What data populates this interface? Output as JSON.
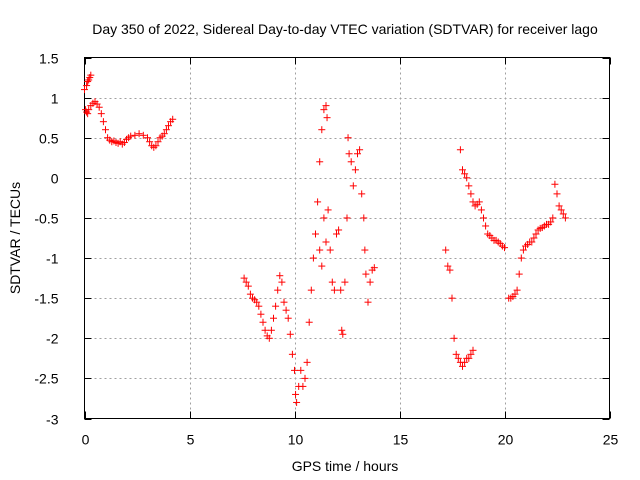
{
  "chart_data": {
    "type": "scatter",
    "title": "Day 350 of 2022, Sidereal Day-to-day VTEC variation (SDTVAR) for receiver lago",
    "xlabel": "GPS time / hours",
    "ylabel": "SDTVAR / TECUs",
    "xlim": [
      0,
      25
    ],
    "ylim": [
      -3,
      1.5
    ],
    "xticks": [
      0,
      5,
      10,
      15,
      20,
      25
    ],
    "yticks": [
      -3,
      -2.5,
      -2,
      -1.5,
      -1,
      -0.5,
      0,
      0.5,
      1,
      1.5
    ],
    "grid": true,
    "marker": "+",
    "series": [
      {
        "name": "SDTVAR",
        "color": "#ff0000",
        "points": [
          [
            0.0,
            1.1
          ],
          [
            0.1,
            1.15
          ],
          [
            0.15,
            1.2
          ],
          [
            0.2,
            1.22
          ],
          [
            0.25,
            1.25
          ],
          [
            0.3,
            1.28
          ],
          [
            0.05,
            0.85
          ],
          [
            0.1,
            0.82
          ],
          [
            0.15,
            0.8
          ],
          [
            0.2,
            0.85
          ],
          [
            0.3,
            0.9
          ],
          [
            0.4,
            0.93
          ],
          [
            0.5,
            0.95
          ],
          [
            0.6,
            0.92
          ],
          [
            0.7,
            0.88
          ],
          [
            0.8,
            0.8
          ],
          [
            0.9,
            0.7
          ],
          [
            1.0,
            0.6
          ],
          [
            1.1,
            0.5
          ],
          [
            1.2,
            0.47
          ],
          [
            1.3,
            0.45
          ],
          [
            1.4,
            0.46
          ],
          [
            1.5,
            0.44
          ],
          [
            1.6,
            0.43
          ],
          [
            1.7,
            0.45
          ],
          [
            1.8,
            0.42
          ],
          [
            1.9,
            0.44
          ],
          [
            2.0,
            0.48
          ],
          [
            2.1,
            0.5
          ],
          [
            2.2,
            0.52
          ],
          [
            2.4,
            0.53
          ],
          [
            2.6,
            0.55
          ],
          [
            2.8,
            0.53
          ],
          [
            3.0,
            0.5
          ],
          [
            3.1,
            0.45
          ],
          [
            3.2,
            0.4
          ],
          [
            3.3,
            0.38
          ],
          [
            3.4,
            0.4
          ],
          [
            3.5,
            0.45
          ],
          [
            3.6,
            0.5
          ],
          [
            3.7,
            0.52
          ],
          [
            3.8,
            0.55
          ],
          [
            3.9,
            0.6
          ],
          [
            4.0,
            0.65
          ],
          [
            4.1,
            0.7
          ],
          [
            4.2,
            0.73
          ],
          [
            7.6,
            -1.25
          ],
          [
            7.7,
            -1.3
          ],
          [
            7.8,
            -1.35
          ],
          [
            7.9,
            -1.45
          ],
          [
            8.0,
            -1.5
          ],
          [
            8.1,
            -1.52
          ],
          [
            8.2,
            -1.55
          ],
          [
            8.3,
            -1.6
          ],
          [
            8.4,
            -1.7
          ],
          [
            8.5,
            -1.8
          ],
          [
            8.6,
            -1.9
          ],
          [
            8.7,
            -1.97
          ],
          [
            8.8,
            -2.0
          ],
          [
            8.9,
            -1.9
          ],
          [
            9.0,
            -1.75
          ],
          [
            9.1,
            -1.6
          ],
          [
            9.2,
            -1.4
          ],
          [
            9.3,
            -1.22
          ],
          [
            9.4,
            -1.3
          ],
          [
            9.5,
            -1.55
          ],
          [
            9.6,
            -1.65
          ],
          [
            9.7,
            -1.75
          ],
          [
            9.8,
            -1.95
          ],
          [
            9.9,
            -2.2
          ],
          [
            10.0,
            -2.4
          ],
          [
            10.05,
            -2.7
          ],
          [
            10.1,
            -2.8
          ],
          [
            10.2,
            -2.6
          ],
          [
            10.3,
            -2.4
          ],
          [
            10.4,
            -2.6
          ],
          [
            10.5,
            -2.5
          ],
          [
            10.6,
            -2.3
          ],
          [
            10.7,
            -1.8
          ],
          [
            10.8,
            -1.4
          ],
          [
            10.9,
            -1.0
          ],
          [
            11.0,
            -0.7
          ],
          [
            11.1,
            -0.3
          ],
          [
            11.2,
            0.2
          ],
          [
            11.3,
            0.6
          ],
          [
            11.4,
            0.85
          ],
          [
            11.5,
            0.9
          ],
          [
            11.55,
            0.75
          ],
          [
            11.2,
            -0.9
          ],
          [
            11.3,
            -1.1
          ],
          [
            11.4,
            -0.5
          ],
          [
            11.5,
            -0.8
          ],
          [
            11.6,
            -0.4
          ],
          [
            11.7,
            -0.9
          ],
          [
            11.8,
            -1.3
          ],
          [
            11.9,
            -1.4
          ],
          [
            12.0,
            -0.7
          ],
          [
            12.1,
            -0.65
          ],
          [
            12.2,
            -1.4
          ],
          [
            12.25,
            -1.9
          ],
          [
            12.3,
            -1.95
          ],
          [
            12.4,
            -1.3
          ],
          [
            12.5,
            -0.5
          ],
          [
            12.55,
            0.5
          ],
          [
            12.6,
            0.3
          ],
          [
            12.7,
            0.2
          ],
          [
            12.8,
            -0.1
          ],
          [
            12.9,
            0.1
          ],
          [
            13.0,
            0.3
          ],
          [
            13.1,
            0.35
          ],
          [
            13.2,
            -0.2
          ],
          [
            13.3,
            -0.5
          ],
          [
            13.35,
            -0.9
          ],
          [
            13.4,
            -1.2
          ],
          [
            13.5,
            -1.55
          ],
          [
            13.6,
            -1.3
          ],
          [
            13.7,
            -1.15
          ],
          [
            13.8,
            -1.12
          ],
          [
            17.2,
            -0.9
          ],
          [
            17.3,
            -1.1
          ],
          [
            17.4,
            -1.15
          ],
          [
            17.5,
            -1.5
          ],
          [
            17.6,
            -2.0
          ],
          [
            17.7,
            -2.2
          ],
          [
            17.8,
            -2.25
          ],
          [
            17.9,
            -2.3
          ],
          [
            18.0,
            -2.35
          ],
          [
            18.1,
            -2.3
          ],
          [
            18.2,
            -2.25
          ],
          [
            18.3,
            -2.25
          ],
          [
            18.4,
            -2.2
          ],
          [
            18.5,
            -2.15
          ],
          [
            17.9,
            0.35
          ],
          [
            18.0,
            0.1
          ],
          [
            18.1,
            0.05
          ],
          [
            18.2,
            0.0
          ],
          [
            18.3,
            -0.1
          ],
          [
            18.4,
            -0.2
          ],
          [
            18.5,
            -0.3
          ],
          [
            18.6,
            -0.35
          ],
          [
            18.7,
            -0.33
          ],
          [
            18.8,
            -0.3
          ],
          [
            18.9,
            -0.4
          ],
          [
            19.0,
            -0.5
          ],
          [
            19.1,
            -0.6
          ],
          [
            19.2,
            -0.7
          ],
          [
            19.3,
            -0.72
          ],
          [
            19.4,
            -0.75
          ],
          [
            19.5,
            -0.78
          ],
          [
            19.6,
            -0.78
          ],
          [
            19.7,
            -0.8
          ],
          [
            19.8,
            -0.82
          ],
          [
            19.9,
            -0.85
          ],
          [
            20.0,
            -0.87
          ],
          [
            20.2,
            -1.5
          ],
          [
            20.3,
            -1.5
          ],
          [
            20.4,
            -1.48
          ],
          [
            20.5,
            -1.45
          ],
          [
            20.6,
            -1.4
          ],
          [
            20.7,
            -1.2
          ],
          [
            20.8,
            -1.0
          ],
          [
            20.9,
            -0.9
          ],
          [
            21.0,
            -0.85
          ],
          [
            21.1,
            -0.83
          ],
          [
            21.2,
            -0.8
          ],
          [
            21.3,
            -0.8
          ],
          [
            21.4,
            -0.75
          ],
          [
            21.5,
            -0.7
          ],
          [
            21.6,
            -0.65
          ],
          [
            21.7,
            -0.63
          ],
          [
            21.8,
            -0.62
          ],
          [
            21.9,
            -0.6
          ],
          [
            22.0,
            -0.58
          ],
          [
            22.1,
            -0.58
          ],
          [
            22.2,
            -0.55
          ],
          [
            22.3,
            -0.5
          ],
          [
            22.4,
            -0.08
          ],
          [
            22.5,
            -0.2
          ],
          [
            22.6,
            -0.35
          ],
          [
            22.7,
            -0.4
          ],
          [
            22.8,
            -0.45
          ],
          [
            22.9,
            -0.5
          ]
        ]
      }
    ]
  }
}
